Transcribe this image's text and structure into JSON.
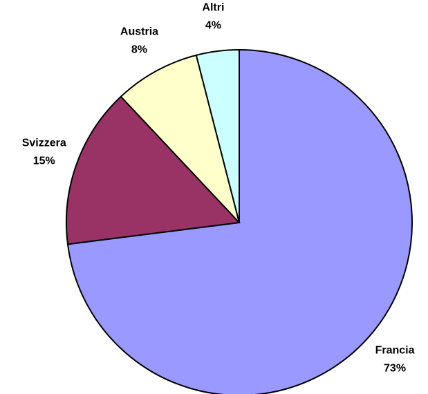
{
  "chart_data": {
    "type": "pie",
    "categories": [
      "Francia",
      "Svizzera",
      "Austria",
      "Altri"
    ],
    "values": [
      73,
      15,
      8,
      4
    ],
    "value_labels": [
      "73%",
      "15%",
      "8%",
      "4%"
    ],
    "colors": [
      "#9999ff",
      "#993366",
      "#ffffcc",
      "#ccffff"
    ]
  }
}
